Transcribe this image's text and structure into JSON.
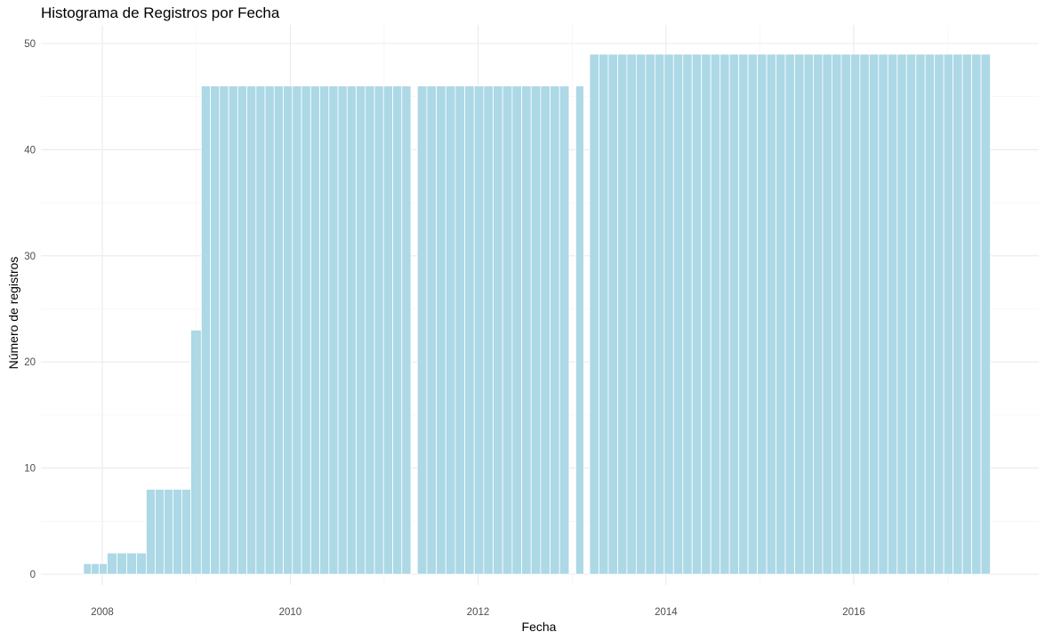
{
  "chart_data": {
    "type": "bar",
    "title": "Histograma de Registros por Fecha",
    "xlabel": "Fecha",
    "ylabel": "Número de registros",
    "x_ticks": [
      "2008",
      "2010",
      "2012",
      "2014",
      "2016"
    ],
    "y_ticks": [
      0,
      10,
      20,
      30,
      40,
      50
    ],
    "ylim": [
      0,
      50
    ],
    "xlim": [
      "2007-05-15",
      "2018-03-15"
    ],
    "grid": true,
    "bar_color": "#add8e6",
    "bar_outline": "#ffffff",
    "bins": [
      {
        "start": "2007-10-20",
        "end": "2008-01-20",
        "count": 1
      },
      {
        "start": "2008-01-20",
        "end": "2008-06-20",
        "count": 2
      },
      {
        "start": "2008-06-20",
        "end": "2008-12-10",
        "count": 8
      },
      {
        "start": "2008-12-10",
        "end": "2009-01-20",
        "count": 23
      },
      {
        "start": "2009-01-20",
        "end": "2011-04-15",
        "count": 46
      },
      {
        "start": "2011-05-10",
        "end": "2012-12-20",
        "count": 46
      },
      {
        "start": "2013-01-15",
        "end": "2013-02-15",
        "count": 46
      },
      {
        "start": "2013-03-10",
        "end": "2017-06-15",
        "count": 49
      }
    ]
  }
}
